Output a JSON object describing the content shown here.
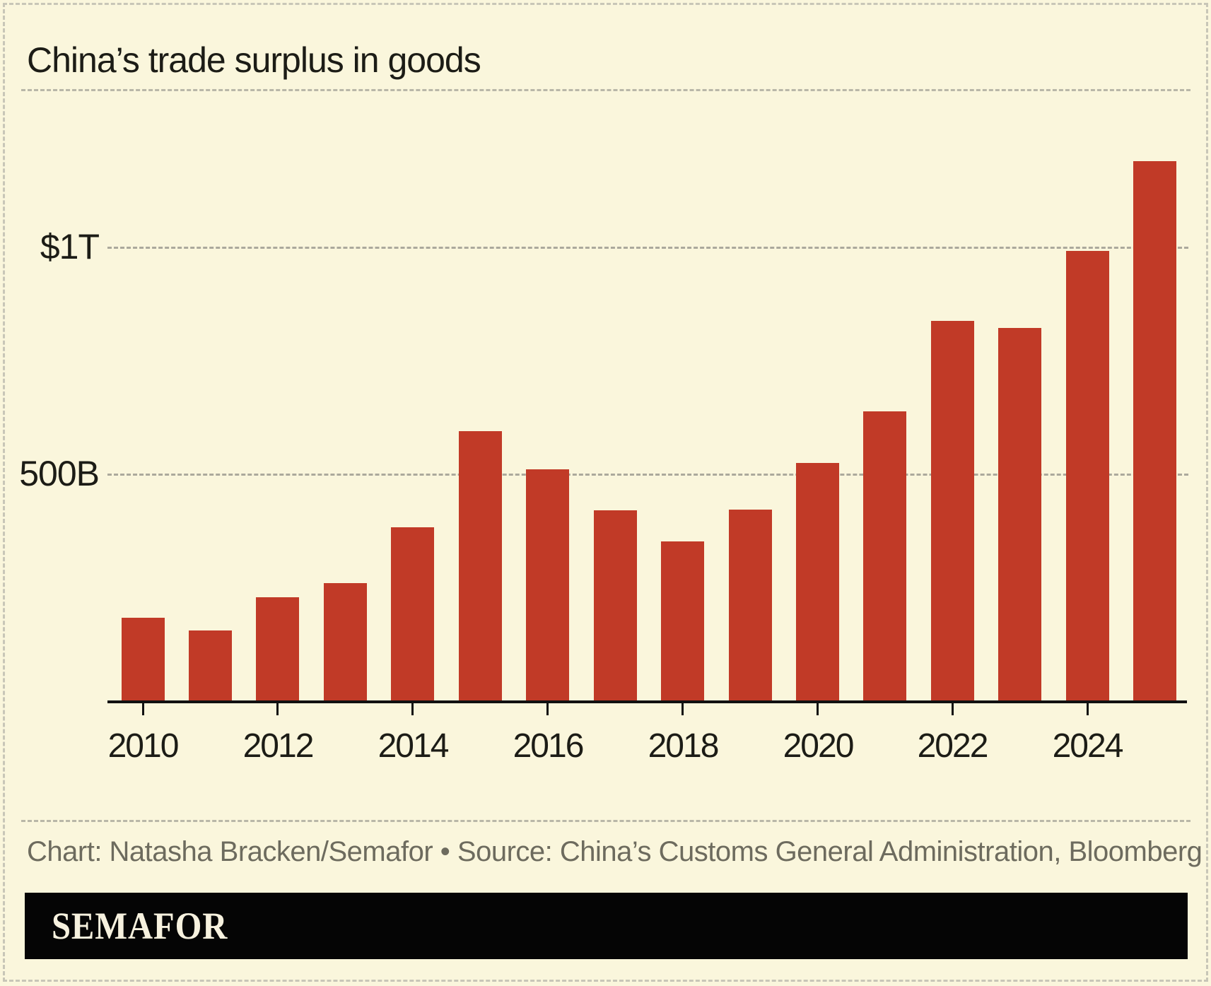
{
  "header": {
    "title": "China’s trade surplus in goods"
  },
  "chart_data": {
    "type": "bar",
    "title": "China’s trade surplus in goods",
    "series_name": "Trade surplus in goods",
    "unit": "USD billions",
    "categories": [
      "2010",
      "2011",
      "2012",
      "2013",
      "2014",
      "2015",
      "2016",
      "2017",
      "2018",
      "2019",
      "2020",
      "2021",
      "2022",
      "2023",
      "2024",
      "2025"
    ],
    "values": [
      182,
      155,
      228,
      259,
      382,
      594,
      510,
      420,
      351,
      421,
      524,
      638,
      838,
      822,
      992,
      1190
    ],
    "y_axis": {
      "ticks": [
        {
          "label": "$1T",
          "value": 1000
        },
        {
          "label": "500B",
          "value": 500
        }
      ],
      "range": [
        0,
        1250
      ],
      "gridlines": "dashed"
    },
    "x_axis": {
      "tick_labels": [
        "2010",
        "2012",
        "2014",
        "2016",
        "2018",
        "2020",
        "2022",
        "2024"
      ],
      "tick_interval_years": 2
    },
    "legend_position": "none",
    "bar_color": "#c13a27"
  },
  "footer": {
    "credit": "Chart: Natasha Bracken/Semafor • Source: China’s Customs General Administration, Bloomberg"
  },
  "brand": {
    "logo_text": "SEMAFOR"
  },
  "colors": {
    "background": "#faf6dc",
    "bar": "#c13a27",
    "axis": "#111111",
    "text": "#1c1c16",
    "muted_text": "#6d6b5e",
    "gridline": "#aba99c",
    "border": "#c8c6b7",
    "brand_bar": "#050505",
    "logo_text": "#f6f1de"
  }
}
